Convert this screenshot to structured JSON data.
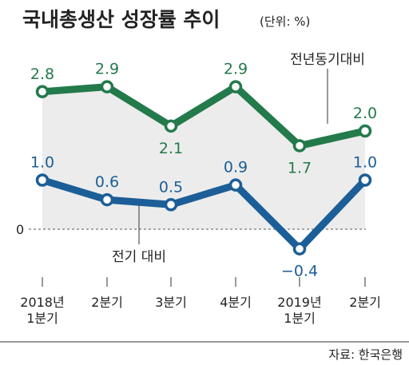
{
  "header": {
    "title": "국내총생산 성장률 추이",
    "unit": "(단위: %)"
  },
  "source": "자료: 한국은행",
  "colors": {
    "yoy": "#237a4b",
    "qoq": "#1c5e97",
    "band": "#ececec"
  },
  "chart_data": {
    "type": "line",
    "title": "국내총생산 성장률 추이",
    "unit": "%",
    "categories": [
      [
        "2018년",
        "1분기"
      ],
      [
        "2분기"
      ],
      [
        "3분기"
      ],
      [
        "4분기"
      ],
      [
        "2019년",
        "1분기"
      ],
      [
        "2분기"
      ]
    ],
    "zero_label": "0",
    "ylim": [
      -0.4,
      2.9
    ],
    "series": [
      {
        "name": "전년동기대비",
        "values": [
          2.8,
          2.9,
          2.1,
          2.9,
          1.7,
          2.0
        ],
        "labels": [
          "2.8",
          "2.9",
          "2.1",
          "2.9",
          "1.7",
          "2.0"
        ]
      },
      {
        "name": "전기 대비",
        "values": [
          1.0,
          0.6,
          0.5,
          0.9,
          -0.4,
          1.0
        ],
        "labels": [
          "1.0",
          "0.6",
          "0.5",
          "0.9",
          "−0.4",
          "1.0"
        ]
      }
    ]
  }
}
